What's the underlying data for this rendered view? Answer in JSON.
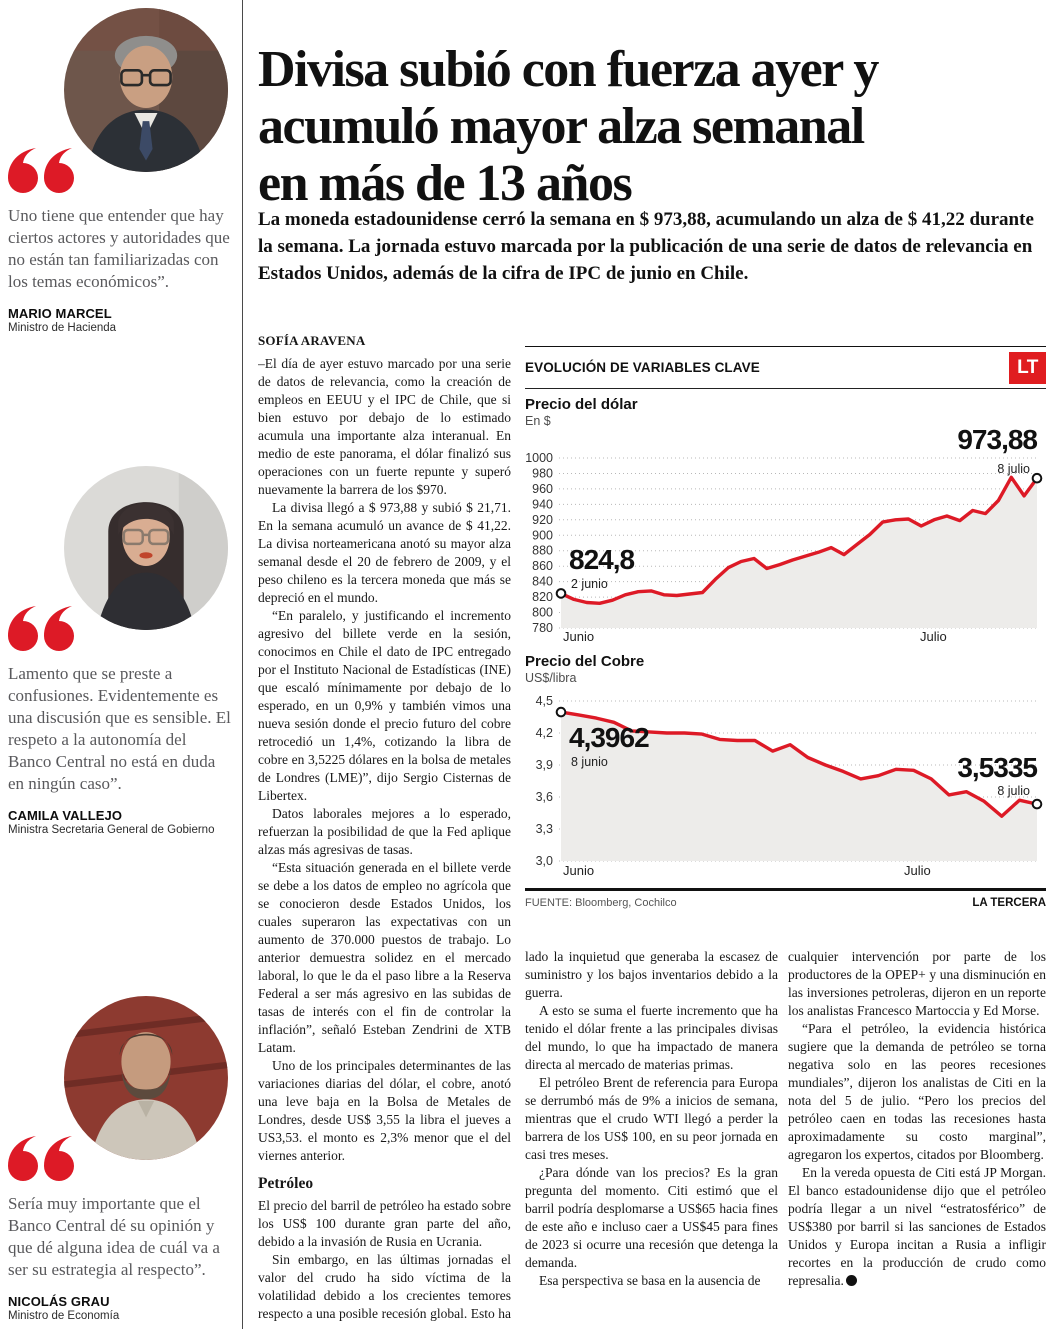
{
  "colors": {
    "accent": "#dd1a26",
    "chart_fill": "#edecea",
    "grid": "#b8b8b8"
  },
  "sidebar": {
    "quotes": [
      {
        "quote": "Uno tiene que entender que hay ciertos actores y autoridades que no están tan familiarizadas con los temas económicos”.",
        "name": "MARIO MARCEL",
        "role": "Ministro de Hacienda"
      },
      {
        "quote": "Lamento que se preste a confusiones. Evidentemente es una discusión que es sensible. El respeto a la autonomía del Banco Central no está en duda en ningún caso”.",
        "name": "CAMILA VALLEJO",
        "role": "Ministra Secretaria General de Gobierno"
      },
      {
        "quote": "Sería muy importante que el Banco Central dé su opinión y que dé alguna idea de cuál va a ser su estrategia al respecto”.",
        "name": "NICOLÁS GRAU",
        "role": "Ministro de Economía"
      }
    ]
  },
  "article": {
    "headline_lines": [
      "Divisa subió con fuerza ayer y",
      "acumuló mayor alza semanal",
      "en más de 13 años"
    ],
    "lead": "La moneda estadounidense cerró la semana en $ 973,88, acumulando un alza de $ 41,22 durante la semana. La jornada estuvo marcada por la publicación de una serie de datos de relevancia en Estados Unidos, además de la cifra de IPC de junio en Chile.",
    "byline": "SOFÍA ARAVENA",
    "subhead": "Petróleo",
    "col1": [
      "–El día de ayer estuvo marcado por una serie de datos de relevancia, como la creación de empleos en EEUU y el IPC de Chile, que si bien estuvo por debajo de lo estimado acumula una importante alza interanual. En medio de este panorama, el dólar finalizó sus operaciones con un fuerte repunte y superó nuevamente la barrera de los $970.",
      "La divisa llegó a $ 973,88 y subió $ 21,71. En la semana acumuló un avance de $ 41,22. La divisa norteamericana anotó su mayor alza semanal desde el 20 de febrero de 2009, y el peso chileno es la tercera moneda que más se depreció en el mundo.",
      "“En paralelo, y justificando el incremento agresivo del billete verde en la sesión, conocimos en Chile el dato de IPC entregado por el Instituto Nacional de Estadísticas (INE) que escaló mínimamente por debajo de lo esperado, en un 0,9% y también vimos una nueva sesión donde el precio futuro del cobre retrocedió un 1,4%, cotizando la libra de cobre en 3,5225 dólares en la bolsa de metales de Londres (LME)”, dijo Sergio Cisternas de Libertex.",
      "Datos laborales mejores a lo esperado, refuerzan la posibilidad de que la Fed aplique alzas más agresivas de tasas.",
      "“Esta situación generada en el billete verde se debe a los datos de empleo no agrícola que se conocieron desde Estados Unidos, los cuales superaron las expectativas con un aumento de 370.000 puestos de trabajo. Lo anterior demuestra solidez en el mercado laboral, lo que le da el paso libre a la Reserva Federal a ser más agresivo en las subidas de tasas de interés con el fin de controlar la inflación”, señaló Esteban Zendrini de XTB Latam.",
      "Uno de los principales determinantes de las variaciones diarias del dólar, el cobre, anotó una leve baja en la Bolsa de Metales de Londres, desde US$ 3,55 la libra el jueves a US3,53. el monto es 2,3% menor que el del viernes anterior."
    ],
    "col1b": [
      "El precio del barril de petróleo ha estado sobre los US$ 100 durante gran parte del año, debido a la invasión de Rusia en Ucrania.",
      "Sin embargo, en las últimas jornadas el valor del crudo ha sido víctima de la volatilidad debido a los crecientes temores respecto a una posible recesión global. Esto ha anu-"
    ],
    "col2": [
      "lado la inquietud que generaba la escasez de suministro y los bajos inventarios debido a la guerra.",
      "A esto se suma el fuerte incremento que ha tenido el dólar frente a las principales divisas del mundo, lo que ha impactado de manera directa al mercado de materias primas.",
      "El petróleo Brent de referencia para Europa se derrumbó más de 9% a inicios de semana, mientras que el crudo WTI llegó a perder la barrera de los US$ 100, en su peor jornada en casi tres meses.",
      "¿Para dónde van los precios? Es la gran pregunta del momento. Citi estimó que el barril podría desplomarse a US$65 hacia fines de este año e incluso caer a US$45 para fines de 2023 si ocurre una recesión que detenga la demanda.",
      "Esa perspectiva se basa en la ausencia de"
    ],
    "col3": [
      "cualquier intervención por parte de los productores de la OPEP+ y una disminución en las inversiones petroleras, dijeron en un reporte los analistas Francesco Martoccia y Ed Morse.",
      "“Para el petróleo, la evidencia histórica sugiere que la demanda de petróleo se torna negativa solo en las peores recesiones mundiales”, dijeron los analistas de Citi en la nota del 5 de julio. “Pero los precios del petróleo caen en todas las recesiones hasta aproximadamente su costo marginal”, agregaron los expertos, citados por Bloomberg.",
      "En la vereda opuesta de Citi está JP Morgan. El banco estadounidense dijo que el petróleo podría llegar a un nivel “estratosférico” de US$380 por barril si las sanciones de Estados Unidos y Europa incitan a Rusia a infligir recortes en la producción de crudo como represalia."
    ]
  },
  "chart_panel": {
    "title": "EVOLUCIÓN DE VARIABLES CLAVE",
    "logo": "LT",
    "source": "FUENTE: Bloomberg, Cochilco",
    "credit": "LA TERCERA"
  },
  "chart_data": [
    {
      "type": "line",
      "title": "Precio del dólar",
      "unit": "En $",
      "x_axis_labels": [
        "Junio",
        "Julio"
      ],
      "start_value_label": "824,8",
      "start_date": "2 junio",
      "end_value_label": "973,88",
      "end_date": "8 julio",
      "ylim": [
        780,
        1000
      ],
      "ytick_values": [
        1000,
        980,
        960,
        940,
        920,
        900,
        880,
        860,
        840,
        820,
        800,
        780
      ],
      "ytick_labels": [
        "1000",
        "980",
        "960",
        "940",
        "920",
        "900",
        "880",
        "860",
        "840",
        "820",
        "800",
        "780"
      ],
      "values": [
        824.8,
        817,
        813,
        812,
        816,
        823,
        827,
        828,
        823,
        822,
        824,
        826,
        843,
        858,
        866,
        870,
        857,
        862,
        868,
        873,
        878,
        884,
        875,
        888,
        901,
        917,
        920,
        921,
        912,
        920,
        925,
        919,
        932,
        928,
        945,
        975,
        951,
        973.88
      ]
    },
    {
      "type": "line",
      "title": "Precio del Cobre",
      "unit": "US$/libra",
      "x_axis_labels": [
        "Junio",
        "Julio"
      ],
      "start_value_label": "4,3962",
      "start_date": "8 junio",
      "end_value_label": "3,5335",
      "end_date": "8 julio",
      "ylim": [
        3.0,
        4.5
      ],
      "ytick_values": [
        4.5,
        4.2,
        3.9,
        3.6,
        3.3,
        3.0
      ],
      "ytick_labels": [
        "4,5",
        "4,2",
        "3,9",
        "3,6",
        "3,3",
        "3,0"
      ],
      "values": [
        4.3962,
        4.37,
        4.34,
        4.3,
        4.22,
        4.21,
        4.2,
        4.2,
        4.19,
        4.14,
        4.13,
        4.13,
        4.03,
        4.09,
        3.97,
        3.9,
        3.84,
        3.77,
        3.8,
        3.86,
        3.85,
        3.77,
        3.62,
        3.65,
        3.56,
        3.42,
        3.57,
        3.5335
      ]
    }
  ]
}
